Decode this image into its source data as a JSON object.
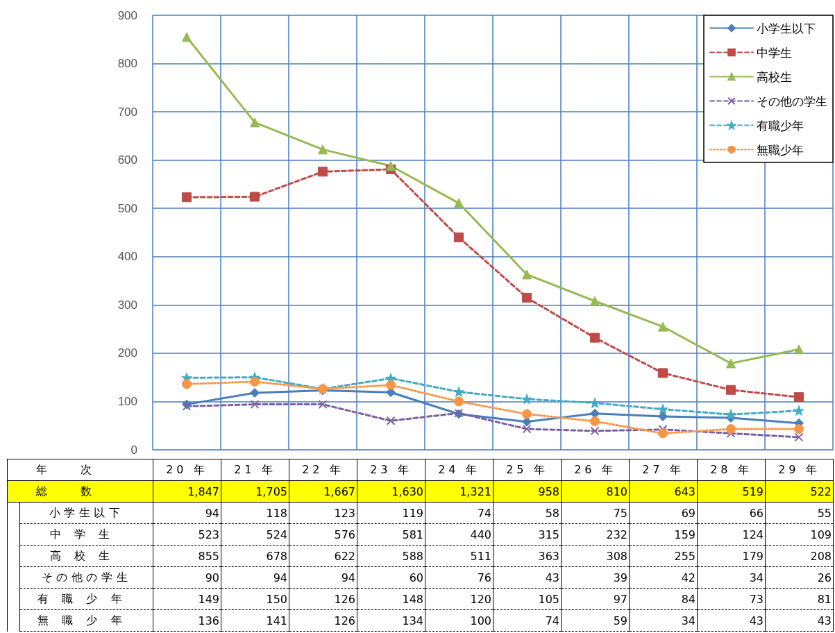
{
  "chart_data": {
    "type": "line",
    "xlabel": "年次",
    "categories": [
      "20 年",
      "21 年",
      "22 年",
      "23 年",
      "24 年",
      "25 年",
      "26 年",
      "27 年",
      "28 年",
      "29 年"
    ],
    "series": [
      {
        "name": "小学生以下",
        "color": "#4a7ebb",
        "marker": "diamond",
        "line_style": "solid",
        "values": [
          94,
          118,
          123,
          119,
          74,
          58,
          75,
          69,
          66,
          55
        ]
      },
      {
        "name": "中学生",
        "color": "#be4b48",
        "marker": "square",
        "line_style": "dashed",
        "values": [
          523,
          524,
          576,
          581,
          440,
          315,
          232,
          159,
          124,
          109
        ]
      },
      {
        "name": "高校生",
        "color": "#98b954",
        "marker": "triangle",
        "line_style": "solid",
        "values": [
          855,
          678,
          622,
          588,
          511,
          363,
          308,
          255,
          179,
          208
        ]
      },
      {
        "name": "その他の学生",
        "color": "#7d60a0",
        "marker": "cross",
        "line_style": "dashed",
        "values": [
          90,
          94,
          94,
          60,
          76,
          43,
          39,
          42,
          34,
          26
        ]
      },
      {
        "name": "有職少年",
        "color": "#46aac5",
        "marker": "star",
        "line_style": "dashed",
        "values": [
          149,
          150,
          126,
          148,
          120,
          105,
          97,
          84,
          73,
          81
        ]
      },
      {
        "name": "無職少年",
        "color": "#f79646",
        "marker": "circle",
        "line_style": "dotted",
        "values": [
          136,
          141,
          126,
          134,
          100,
          74,
          59,
          34,
          43,
          43
        ]
      }
    ],
    "totals": [
      "1,847",
      "1,705",
      "1,667",
      "1,630",
      "1,321",
      "958",
      "810",
      "643",
      "519",
      "522"
    ],
    "annotations": [
      "総数"
    ],
    "ylim": [
      0,
      900
    ],
    "yticks": [
      0,
      100,
      200,
      300,
      400,
      500,
      600,
      700,
      800,
      900
    ],
    "grid": true,
    "legend": "top right",
    "data_labels": true
  }
}
